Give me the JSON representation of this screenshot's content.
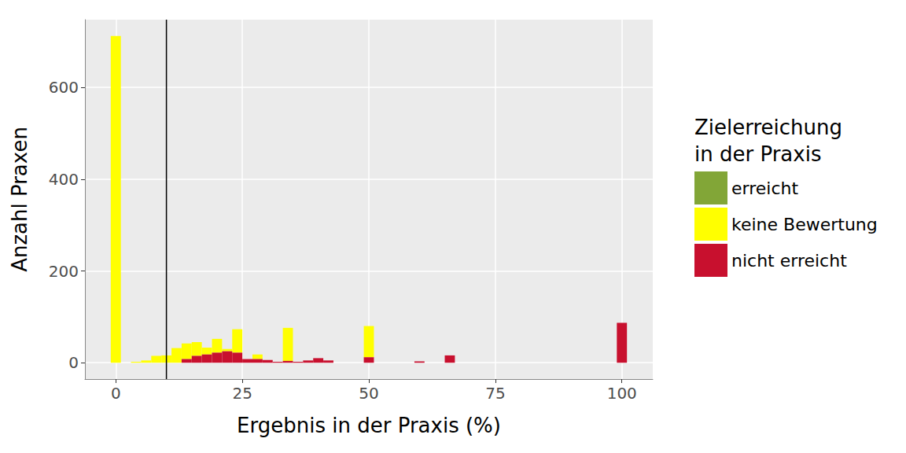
{
  "chart_data": {
    "type": "histogram",
    "x_label": "Ergebnis in der Praxis (%)",
    "y_label": "Anzahl Praxen",
    "legend_title": "Zielerreichung in der Praxis",
    "bins": [
      -1,
      1,
      3,
      5,
      7,
      9,
      11,
      13,
      15,
      17,
      19,
      21,
      23,
      25,
      27,
      29,
      31,
      33,
      35,
      37,
      39,
      41,
      43,
      45,
      47,
      49,
      51,
      53,
      55,
      57,
      59,
      61,
      63,
      65,
      67,
      69,
      71,
      73,
      75,
      77,
      79,
      81,
      83,
      85,
      87,
      89,
      91,
      93,
      95,
      97,
      99,
      101
    ],
    "series": [
      {
        "name": "erreicht",
        "color": "#82A637",
        "values": [
          0,
          0,
          0,
          0,
          0,
          0,
          0,
          0,
          0,
          0,
          0,
          0,
          0,
          0,
          0,
          0,
          0,
          0,
          0,
          0,
          0,
          0,
          0,
          0,
          0,
          0,
          0,
          0,
          0,
          0,
          0,
          0,
          0,
          0,
          0,
          0,
          0,
          0,
          0,
          0,
          0,
          0,
          0,
          0,
          0,
          0,
          0,
          0,
          0,
          0,
          0
        ]
      },
      {
        "name": "keine Bewertung",
        "color": "#FFFF00",
        "values": [
          712,
          0,
          2,
          5,
          15,
          16,
          32,
          34,
          30,
          15,
          30,
          5,
          51,
          0,
          10,
          0,
          0,
          72,
          0,
          0,
          0,
          0,
          0,
          0,
          0,
          68,
          0,
          0,
          0,
          0,
          0,
          0,
          0,
          0,
          0,
          0,
          0,
          0,
          0,
          0,
          0,
          0,
          0,
          0,
          0,
          0,
          0,
          0,
          0,
          0,
          0
        ]
      },
      {
        "name": "nicht erreicht",
        "color": "#C8102E",
        "values": [
          0,
          0,
          0,
          0,
          0,
          0,
          0,
          8,
          15,
          18,
          22,
          25,
          22,
          8,
          8,
          6,
          2,
          4,
          2,
          5,
          10,
          5,
          0,
          0,
          0,
          12,
          0,
          0,
          0,
          0,
          3,
          0,
          0,
          16,
          0,
          0,
          0,
          0,
          0,
          0,
          0,
          0,
          0,
          0,
          0,
          0,
          0,
          0,
          0,
          0,
          87
        ]
      }
    ],
    "stacked": true,
    "xlim": [
      -6.1,
      106.1
    ],
    "xticks": [
      0,
      25,
      50,
      75,
      100
    ],
    "ylim": [
      -35.6,
      747.6
    ],
    "yticks": [
      0,
      200,
      400,
      600
    ],
    "grid": true,
    "legend": "right",
    "reference_lines": [
      {
        "x": 10,
        "color": "#000000"
      }
    ]
  }
}
